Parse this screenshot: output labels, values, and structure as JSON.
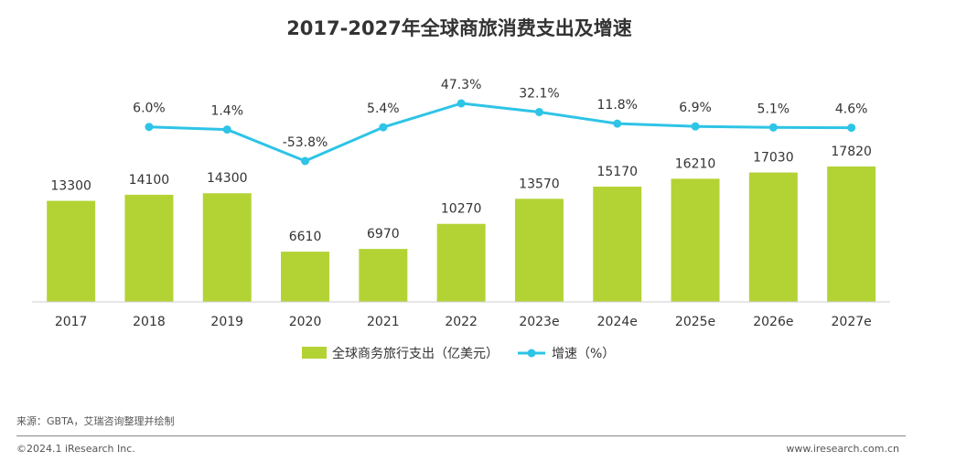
{
  "chart_data": {
    "type": "bar",
    "title": "2017-2027年全球商旅消费支出及增速",
    "categories": [
      "2017",
      "2018",
      "2019",
      "2020",
      "2021",
      "2022",
      "2023e",
      "2024e",
      "2025e",
      "2026e",
      "2027e"
    ],
    "series": [
      {
        "name": "全球商务旅行支出（亿美元）",
        "type": "bar",
        "color": "#b3d335",
        "values": [
          13300,
          14100,
          14300,
          6610,
          6970,
          10270,
          13570,
          15170,
          16210,
          17030,
          17820
        ]
      },
      {
        "name": "增速（%）",
        "type": "line",
        "color": "#2ec4e6",
        "values": [
          null,
          6.0,
          1.4,
          -53.8,
          5.4,
          47.3,
          32.1,
          11.8,
          6.9,
          5.1,
          4.6
        ],
        "labels": [
          "",
          "6.0%",
          "1.4%",
          "-53.8%",
          "5.4%",
          "47.3%",
          "32.1%",
          "11.8%",
          "6.9%",
          "5.1%",
          "4.6%"
        ]
      }
    ],
    "legend_placement": "bottom-center",
    "grid": false
  },
  "footer": {
    "source": "来源：GBTA，艾瑞咨询整理并绘制",
    "copyright": "©2024.1 iResearch Inc.",
    "website": "www.iresearch.com.cn"
  }
}
